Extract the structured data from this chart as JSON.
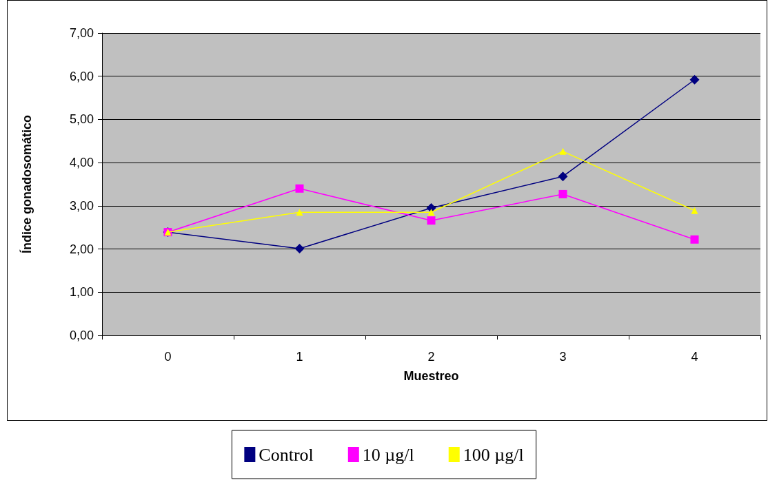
{
  "chart_data": {
    "type": "line",
    "xlabel": "Muestreo",
    "ylabel": "Índice gonadosomático",
    "categories": [
      "0",
      "1",
      "2",
      "3",
      "4"
    ],
    "series": [
      {
        "name": "Control",
        "color": "#000080",
        "marker": "diamond",
        "values": [
          2.39,
          2.01,
          2.95,
          3.68,
          5.92
        ]
      },
      {
        "name": "10 µg/l",
        "color": "#ff00ff",
        "marker": "square",
        "values": [
          2.39,
          3.4,
          2.66,
          3.27,
          2.22
        ]
      },
      {
        "name": "100 µg/l",
        "color": "#ffff00",
        "marker": "triangle",
        "values": [
          2.39,
          2.85,
          2.85,
          4.26,
          2.89
        ]
      }
    ],
    "ylim": [
      0,
      7
    ],
    "yticks": [
      {
        "value": 0,
        "label": "0,00"
      },
      {
        "value": 1,
        "label": "1,00"
      },
      {
        "value": 2,
        "label": "2,00"
      },
      {
        "value": 3,
        "label": "3,00"
      },
      {
        "value": 4,
        "label": "4,00"
      },
      {
        "value": 5,
        "label": "5,00"
      },
      {
        "value": 6,
        "label": "6,00"
      },
      {
        "value": 7,
        "label": "7,00"
      }
    ],
    "grid": "y",
    "legend": "bottom",
    "line_style": "solid"
  }
}
